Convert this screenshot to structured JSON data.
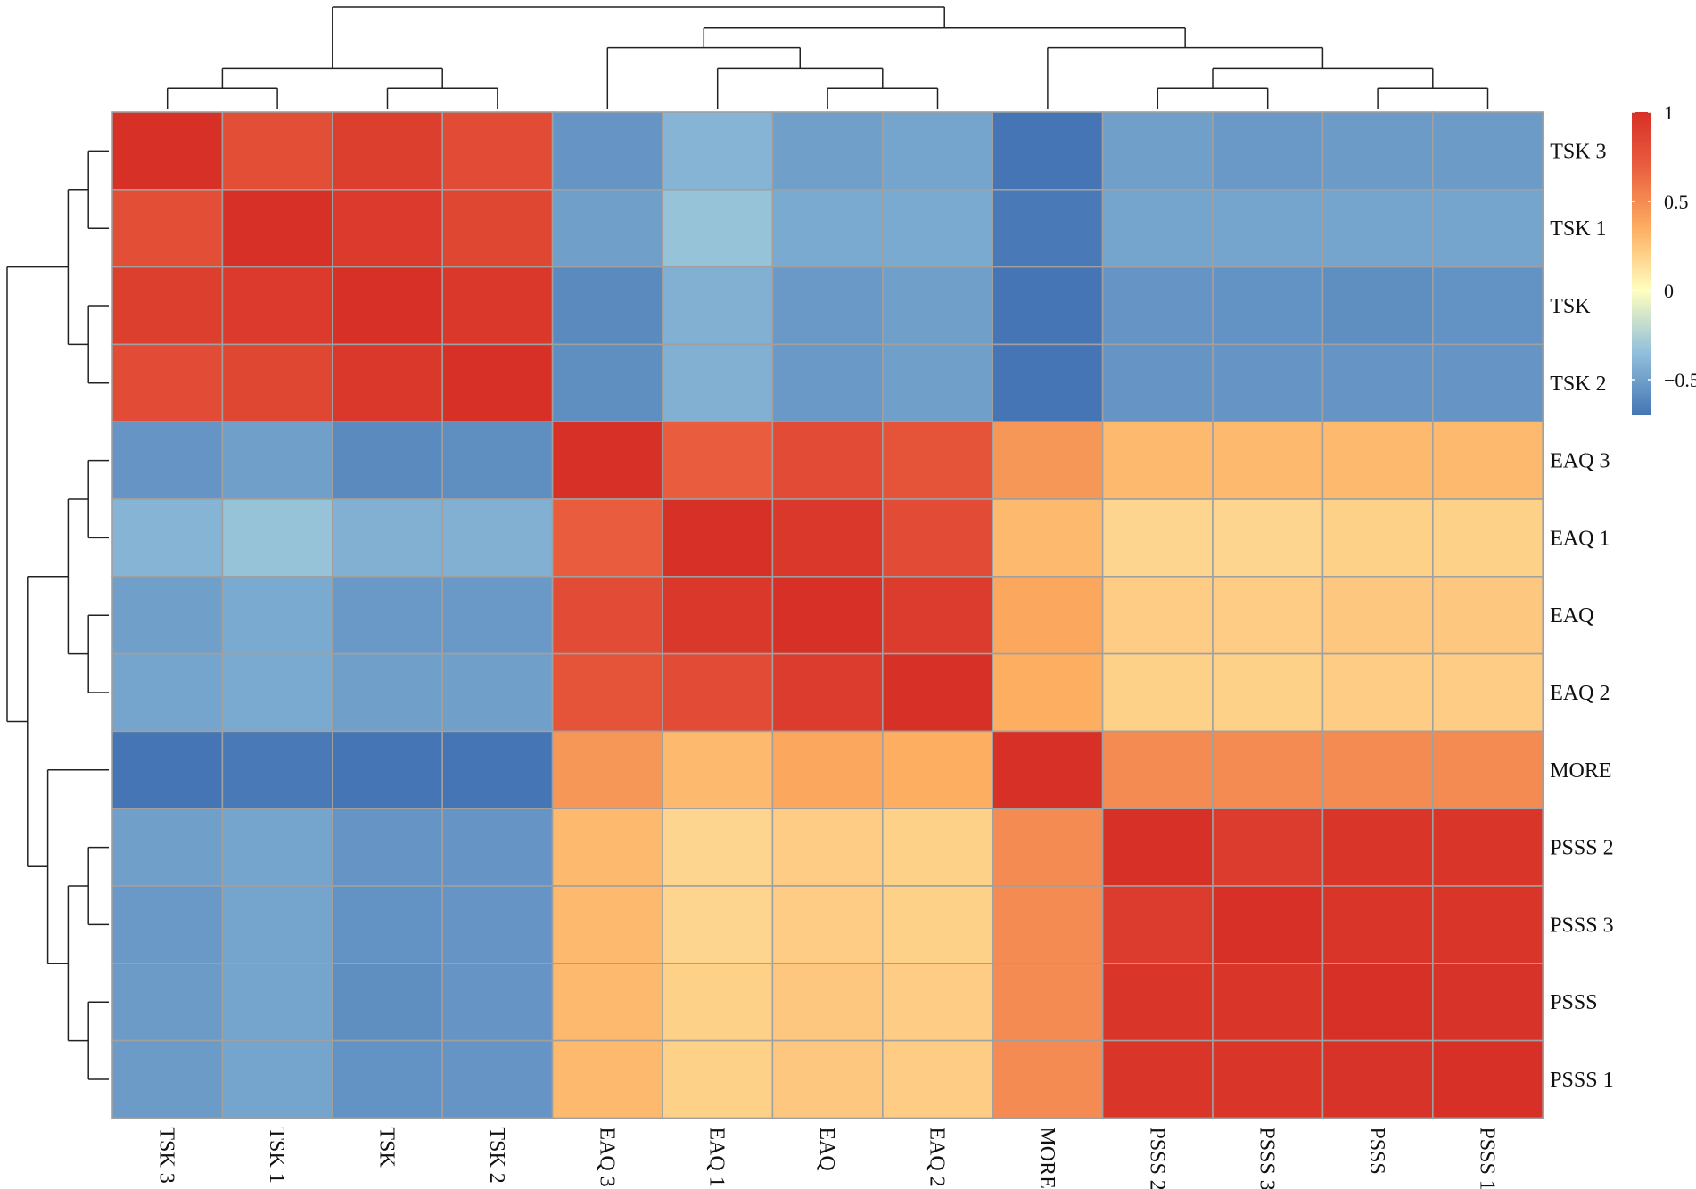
{
  "chart_data": {
    "type": "heatmap",
    "title": "",
    "rows": [
      "TSK 3",
      "TSK 1",
      "TSK",
      "TSK 2",
      "EAQ 3",
      "EAQ 1",
      "EAQ",
      "EAQ 2",
      "MORE",
      "PSSS 2",
      "PSSS 3",
      "PSSS",
      "PSSS 1"
    ],
    "columns": [
      "TSK 3",
      "TSK 1",
      "TSK",
      "TSK 2",
      "EAQ 3",
      "EAQ 1",
      "EAQ",
      "EAQ 2",
      "MORE",
      "PSSS 2",
      "PSSS 3",
      "PSSS",
      "PSSS 1"
    ],
    "values": [
      [
        1.0,
        0.8,
        0.9,
        0.82,
        -0.55,
        -0.4,
        -0.5,
        -0.48,
        -0.72,
        -0.5,
        -0.53,
        -0.52,
        -0.52
      ],
      [
        0.8,
        1.0,
        0.93,
        0.85,
        -0.5,
        -0.33,
        -0.45,
        -0.45,
        -0.68,
        -0.48,
        -0.48,
        -0.48,
        -0.48
      ],
      [
        0.9,
        0.93,
        1.0,
        0.95,
        -0.6,
        -0.42,
        -0.53,
        -0.5,
        -0.75,
        -0.55,
        -0.56,
        -0.58,
        -0.56
      ],
      [
        0.82,
        0.85,
        0.95,
        1.0,
        -0.58,
        -0.42,
        -0.53,
        -0.5,
        -0.74,
        -0.55,
        -0.55,
        -0.55,
        -0.55
      ],
      [
        -0.55,
        -0.5,
        -0.6,
        -0.58,
        1.0,
        0.7,
        0.82,
        0.76,
        0.45,
        0.3,
        0.3,
        0.3,
        0.3
      ],
      [
        -0.4,
        -0.33,
        -0.42,
        -0.42,
        0.7,
        1.0,
        0.95,
        0.82,
        0.3,
        0.18,
        0.18,
        0.2,
        0.2
      ],
      [
        -0.5,
        -0.45,
        -0.53,
        -0.53,
        0.82,
        0.95,
        1.0,
        0.92,
        0.38,
        0.22,
        0.22,
        0.24,
        0.24
      ],
      [
        -0.48,
        -0.45,
        -0.5,
        -0.5,
        0.76,
        0.82,
        0.92,
        1.0,
        0.35,
        0.2,
        0.2,
        0.22,
        0.22
      ],
      [
        -0.72,
        -0.68,
        -0.75,
        -0.74,
        0.45,
        0.3,
        0.38,
        0.35,
        1.0,
        0.5,
        0.5,
        0.5,
        0.5
      ],
      [
        -0.5,
        -0.48,
        -0.55,
        -0.55,
        0.3,
        0.18,
        0.22,
        0.2,
        0.5,
        1.0,
        0.92,
        0.97,
        0.97
      ],
      [
        -0.53,
        -0.48,
        -0.56,
        -0.55,
        0.3,
        0.18,
        0.22,
        0.2,
        0.5,
        0.92,
        1.0,
        0.97,
        0.97
      ],
      [
        -0.52,
        -0.48,
        -0.58,
        -0.55,
        0.3,
        0.2,
        0.24,
        0.22,
        0.5,
        0.97,
        0.97,
        1.0,
        0.98
      ],
      [
        -0.52,
        -0.48,
        -0.56,
        -0.55,
        0.3,
        0.2,
        0.24,
        0.22,
        0.5,
        0.97,
        0.97,
        0.98,
        1.0
      ]
    ],
    "color_scale": {
      "range": [
        -0.7,
        1.0
      ],
      "ticks": [
        1,
        0.5,
        0,
        -0.5
      ],
      "tick_labels": [
        "1",
        "0.5",
        "0",
        "−0.5"
      ],
      "stops": [
        {
          "value": -0.7,
          "color": "#4575b4"
        },
        {
          "value": -0.35,
          "color": "#91bfdb"
        },
        {
          "value": 0.0,
          "color": "#ffffbf"
        },
        {
          "value": 0.35,
          "color": "#fdae61"
        },
        {
          "value": 0.7,
          "color": "#e95d3e"
        },
        {
          "value": 1.0,
          "color": "#d73027"
        }
      ]
    },
    "legend_position": "top-right",
    "cell_border_color": "#a0a0a0",
    "dendrogram_color": "#222222",
    "col_dendrogram_tree": [
      [
        [
          [
            0,
            1
          ],
          [
            2,
            3
          ]
        ],
        [
          [
            4,
            [
              5,
              [
                6,
                7
              ]
            ]
          ],
          [
            8,
            [
              [
                9,
                10
              ],
              [
                11,
                12
              ]
            ]
          ]
        ]
      ]
    ],
    "row_dendrogram_tree": [
      [
        [
          [
            0,
            1
          ],
          [
            2,
            3
          ]
        ],
        [
          [
            [
              4,
              5
            ],
            [
              6,
              7
            ]
          ],
          [
            8,
            [
              [
                9,
                10
              ],
              [
                11,
                12
              ]
            ]
          ]
        ]
      ]
    ]
  }
}
